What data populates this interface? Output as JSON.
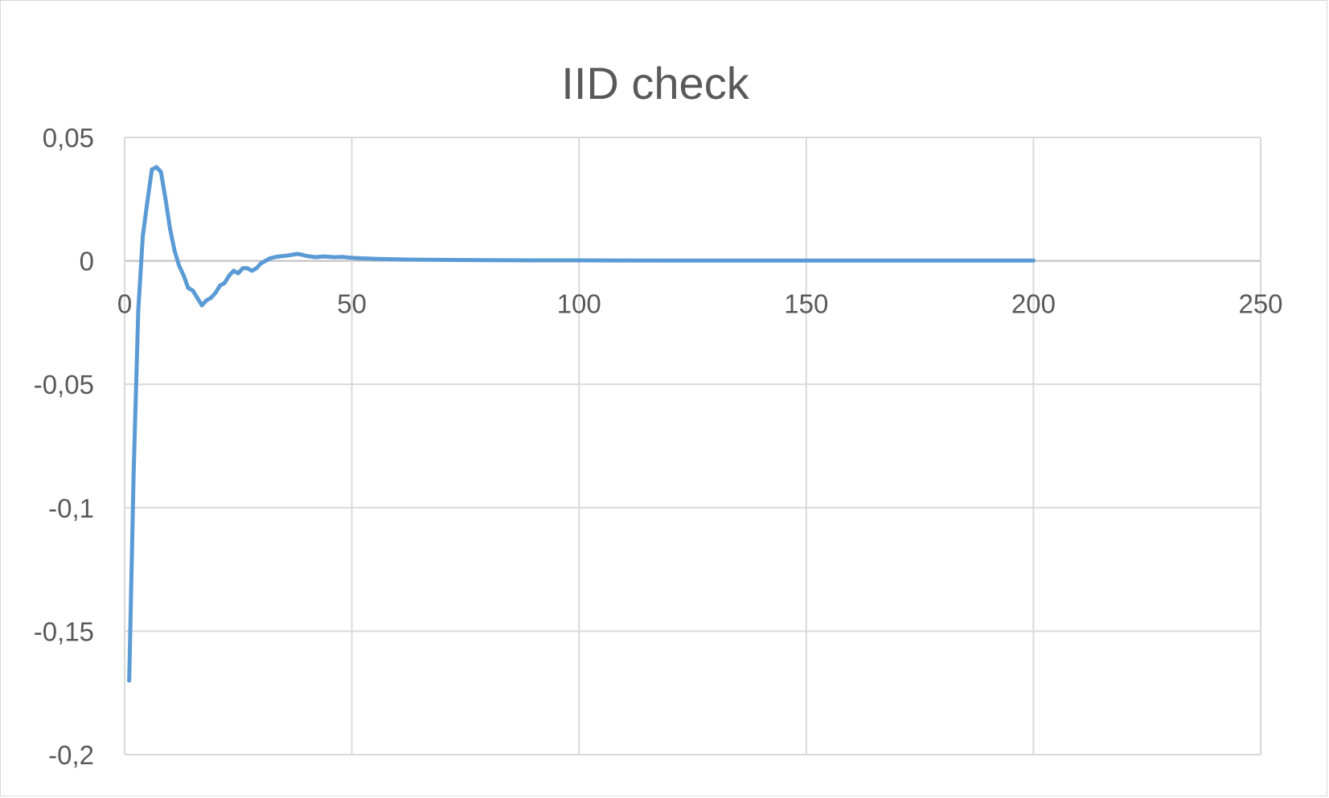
{
  "chart_data": {
    "type": "line",
    "title": "IID check",
    "xlabel": "",
    "ylabel": "",
    "xlim": [
      0,
      250
    ],
    "ylim": [
      -0.2,
      0.05
    ],
    "x_ticks": [
      0,
      50,
      100,
      150,
      200,
      250
    ],
    "x_tick_labels": [
      "0",
      "50",
      "100",
      "150",
      "200",
      "250"
    ],
    "y_ticks": [
      0.05,
      0,
      -0.05,
      -0.1,
      -0.15,
      -0.2
    ],
    "y_tick_labels": [
      "0,05",
      "0",
      "-0,05",
      "-0,1",
      "-0,15",
      "-0,2"
    ],
    "grid": true,
    "legend": "none",
    "colors": {
      "series": "#5b9bd5",
      "grid": "#d9d9d9",
      "text": "#595959"
    },
    "series": [
      {
        "x": [
          1,
          2,
          3,
          4,
          5,
          6,
          7,
          8,
          9,
          10,
          11,
          12,
          13,
          14,
          15,
          16,
          17,
          18,
          19,
          20,
          21,
          22,
          23,
          24,
          25,
          26,
          27,
          28,
          29,
          30,
          31,
          32,
          33,
          34,
          35,
          36,
          37,
          38,
          39,
          40,
          42,
          44,
          46,
          48,
          50,
          55,
          60,
          70,
          80,
          90,
          100,
          120,
          140,
          160,
          180,
          200
        ],
        "y": [
          -0.17,
          -0.085,
          -0.02,
          0.01,
          0.024,
          0.037,
          0.038,
          0.036,
          0.025,
          0.013,
          0.004,
          -0.002,
          -0.006,
          -0.011,
          -0.012,
          -0.015,
          -0.018,
          -0.016,
          -0.015,
          -0.013,
          -0.01,
          -0.009,
          -0.006,
          -0.004,
          -0.005,
          -0.003,
          -0.003,
          -0.004,
          -0.003,
          -0.001,
          0.0,
          0.001,
          0.0015,
          0.0018,
          0.002,
          0.0022,
          0.0025,
          0.0028,
          0.0025,
          0.002,
          0.0015,
          0.0018,
          0.0015,
          0.0016,
          0.0012,
          0.0008,
          0.0006,
          0.0004,
          0.0003,
          0.0002,
          0.0002,
          0.0001,
          0.0001,
          0.0001,
          0.0001,
          0.0001
        ]
      }
    ]
  }
}
